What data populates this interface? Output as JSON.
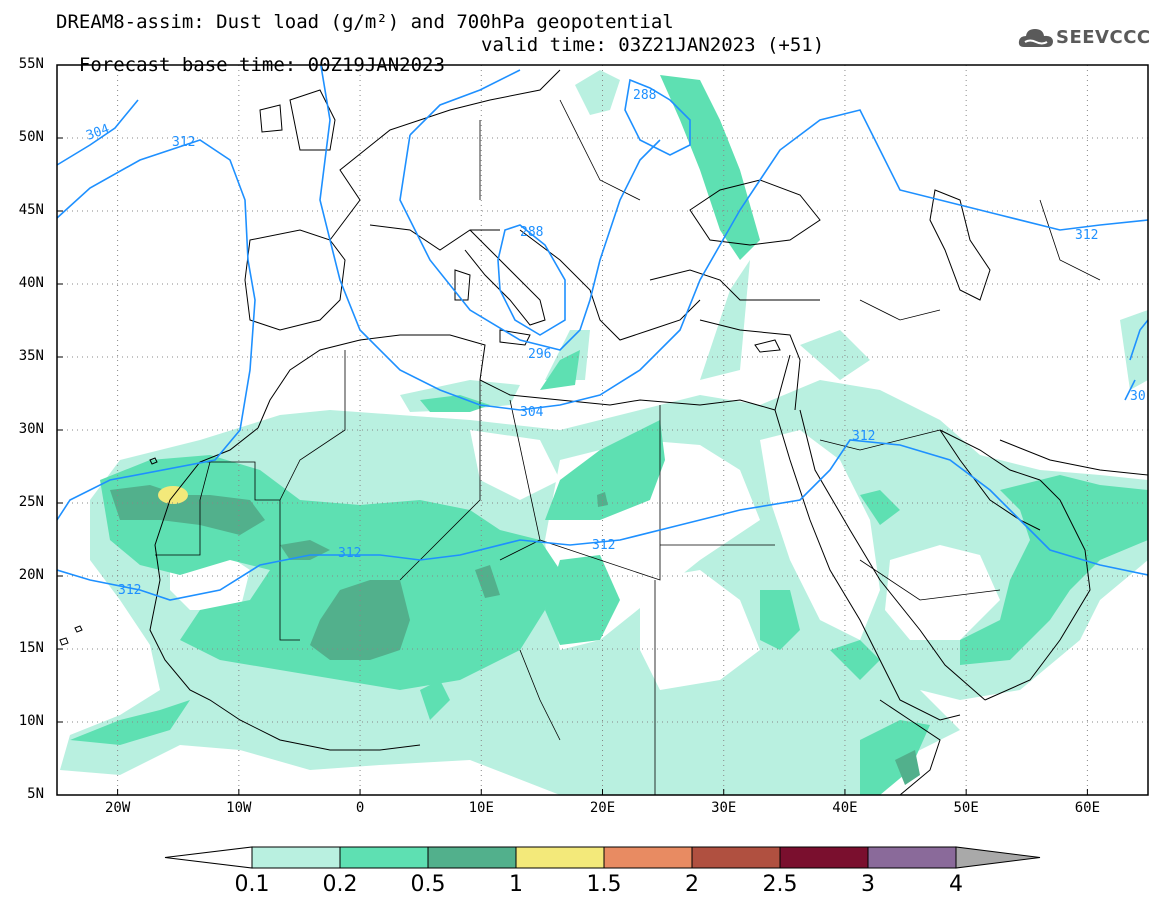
{
  "header": {
    "title": "DREAM8-assim: Dust load (g/m²) and 700hPa geopotential",
    "base_time": "Forecast base time: 00Z19JAN2023",
    "valid_time": "valid time: 03Z21JAN2023 (+51)"
  },
  "logo": {
    "text": "SEEVCCC",
    "icon": "cloud-icon"
  },
  "map": {
    "lat_labels": [
      "55N",
      "50N",
      "45N",
      "40N",
      "35N",
      "30N",
      "25N",
      "20N",
      "15N",
      "10N",
      "5N"
    ],
    "lon_labels": [
      "20W",
      "10W",
      "0",
      "10E",
      "20E",
      "30E",
      "40E",
      "50E",
      "60E"
    ],
    "extent": {
      "lon_min": -25,
      "lon_max": 65,
      "lat_min": 5,
      "lat_max": 55
    },
    "contour_labels": [
      "304",
      "312",
      "288",
      "288",
      "296",
      "304",
      "312",
      "312",
      "312",
      "312",
      "30"
    ]
  },
  "colorbar": {
    "labels": [
      "0.1",
      "0.2",
      "0.5",
      "1",
      "1.5",
      "2",
      "2.5",
      "3",
      "4"
    ],
    "colors": [
      "#b9f0e0",
      "#5ee0b2",
      "#52b08c",
      "#f3e97a",
      "#e88b62",
      "#b05040",
      "#7a0f2e",
      "#8a6a9a"
    ],
    "under_color": "#ffffff",
    "over_color": "#a9a9a9"
  },
  "styles": {
    "geopotential_color": "#1e90ff",
    "border_color": "#000000",
    "gridline_color": "#888888"
  }
}
